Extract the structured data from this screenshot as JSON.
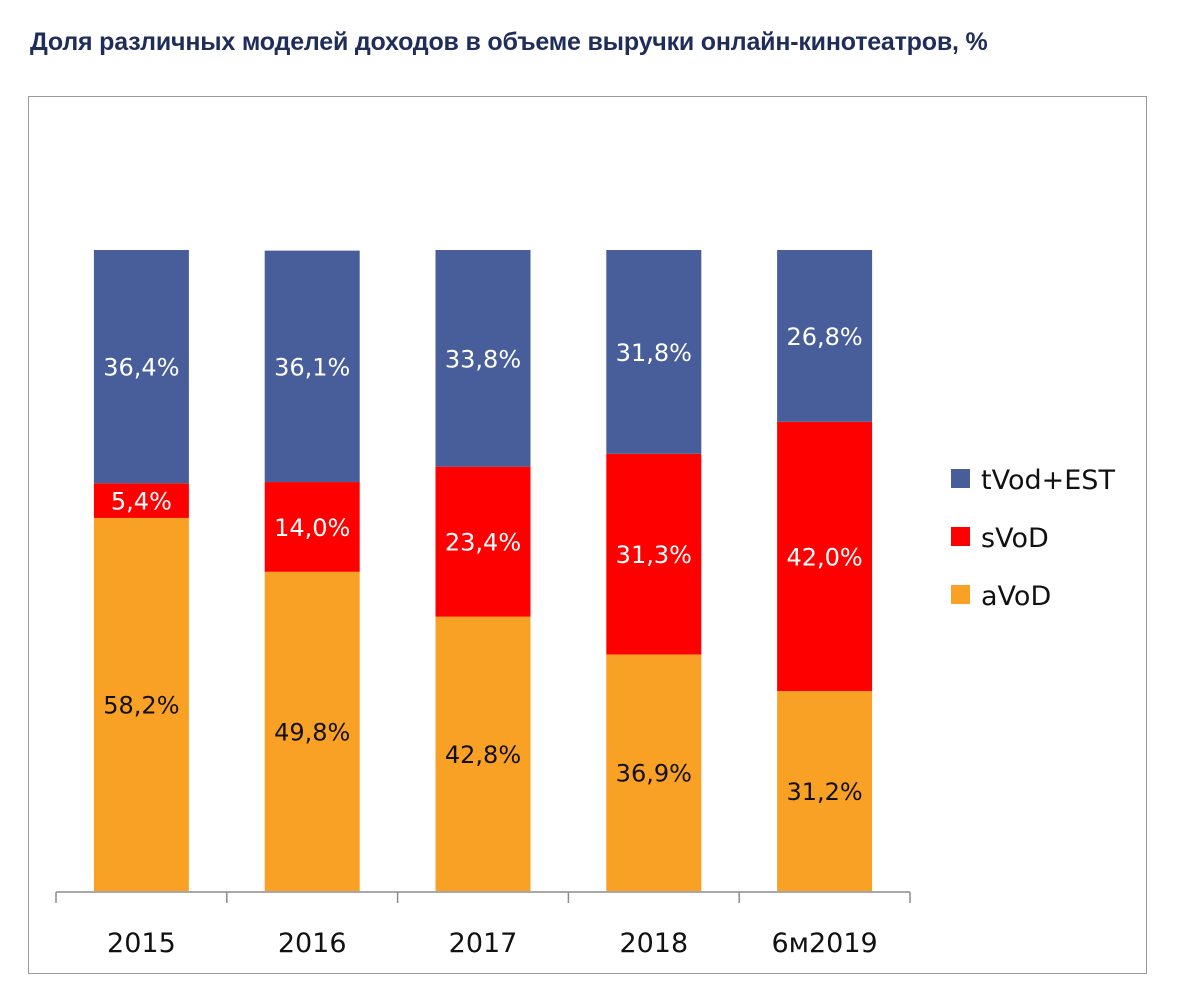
{
  "chart_data": {
    "type": "bar",
    "stacked": true,
    "title": "Доля различных моделей доходов в объеме выручки онлайн-кинотеатров, %",
    "xlabel": "",
    "ylabel": "",
    "ylim": [
      0,
      100
    ],
    "grid": false,
    "legend_position": "right",
    "categories": [
      "2015",
      "2016",
      "2017",
      "2018",
      "6м2019"
    ],
    "series": [
      {
        "name": "aVoD",
        "color": "#f9a125",
        "label_color": "#111111",
        "values": [
          58.2,
          49.8,
          42.8,
          36.9,
          31.2
        ],
        "labels": [
          "58,2%",
          "49,8%",
          "42,8%",
          "36,9%",
          "31,2%"
        ]
      },
      {
        "name": "sVoD",
        "color": "#ff0000",
        "label_color": "#ffffff",
        "values": [
          5.4,
          14.0,
          23.4,
          31.3,
          42.0
        ],
        "labels": [
          "5,4%",
          "14,0%",
          "23,4%",
          "31,3%",
          "42,0%"
        ]
      },
      {
        "name": "tVod+EST",
        "color": "#475e9a",
        "label_color": "#ffffff",
        "values": [
          36.4,
          36.1,
          33.8,
          31.8,
          26.8
        ],
        "labels": [
          "36,4%",
          "36,1%",
          "33,8%",
          "31,8%",
          "26,8%"
        ]
      }
    ],
    "legend_order": [
      "tVod+EST",
      "sVoD",
      "aVoD"
    ]
  }
}
